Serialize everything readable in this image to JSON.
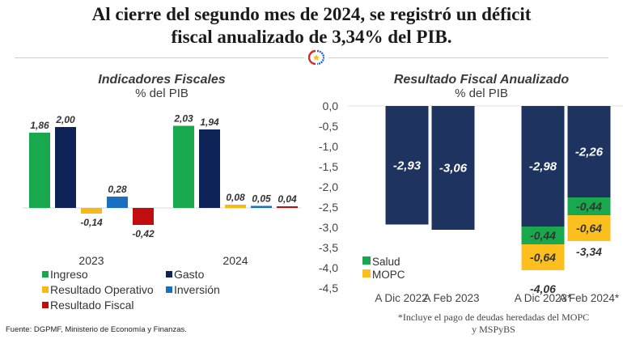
{
  "headline": {
    "line1": "Al cierre del segundo mes de 2024, se registró un déficit",
    "line2": "fiscal anualizado de 3,34% del PIB."
  },
  "emblem_icon": "paraguay-government-emblem",
  "source": "Fuente: DGPMF, Ministerio de Economía y Finanzas.",
  "footnote": {
    "line1": "*Incluye el pago de deudas heredadas del MOPC",
    "line2": "y MSPyBS"
  },
  "chart_data": [
    {
      "type": "bar",
      "title": "Indicadores Fiscales",
      "subtitle": "% del PIB",
      "categories": [
        "2023",
        "2024"
      ],
      "series": [
        {
          "name": "Ingreso",
          "color": "#1aa84f",
          "values": [
            1.86,
            2.03
          ],
          "labels": [
            "1,86",
            "2,03"
          ]
        },
        {
          "name": "Gasto",
          "color": "#0d2358",
          "values": [
            2.0,
            1.94
          ],
          "labels": [
            "2,00",
            "1,94"
          ]
        },
        {
          "name": "Resultado Operativo",
          "color": "#f7b916",
          "values": [
            -0.14,
            0.08
          ],
          "labels": [
            "-0,14",
            "0,08"
          ]
        },
        {
          "name": "Inversión",
          "color": "#1a6fc2",
          "values": [
            0.28,
            0.05
          ],
          "labels": [
            "0,28",
            "0,05"
          ]
        },
        {
          "name": "Resultado Fiscal",
          "color": "#c00d0d",
          "values": [
            -0.42,
            0.04
          ],
          "labels": [
            "-0,42",
            "0,04"
          ]
        }
      ],
      "ylim": [
        -0.6,
        2.2
      ],
      "grid": false,
      "legend_position": "bottom"
    },
    {
      "type": "bar",
      "stacked": true,
      "title": "Resultado Fiscal Anualizado",
      "subtitle": "% del PIB",
      "categories": [
        "A Dic 2022",
        "A Feb 2023",
        "A Dic 2023*",
        "A Feb 2024*"
      ],
      "series": [
        {
          "name": "Resultado",
          "color": "#1f3360",
          "values": [
            -2.93,
            -3.06,
            -2.98,
            -2.26
          ],
          "labels": [
            "-2,93",
            "-3,06",
            "-2,98",
            "-2,26"
          ],
          "in_legend": false
        },
        {
          "name": "Salud",
          "color": "#1aa84f",
          "values": [
            0,
            0,
            -0.44,
            -0.44
          ],
          "labels": [
            "",
            "",
            "-0,44",
            "-0,44"
          ]
        },
        {
          "name": "MOPC",
          "color": "#fcbf1e",
          "values": [
            0,
            0,
            -0.64,
            -0.64
          ],
          "labels": [
            "",
            "",
            "-0,64",
            "-0,64"
          ]
        }
      ],
      "totals": [
        "",
        "",
        "-4,06",
        "-3,34"
      ],
      "yticks": [
        0.0,
        -0.5,
        -1.0,
        -1.5,
        -2.0,
        -2.5,
        -3.0,
        -3.5,
        -4.0,
        -4.5
      ],
      "ytick_labels": [
        "0,0",
        "-0,5",
        "-1,0",
        "-1,5",
        "-2,0",
        "-2,5",
        "-3,0",
        "-3,5",
        "-4,0",
        "-4,5"
      ],
      "ylim": [
        -4.5,
        0
      ],
      "grid": false,
      "legend_position": "bottom-left"
    }
  ]
}
